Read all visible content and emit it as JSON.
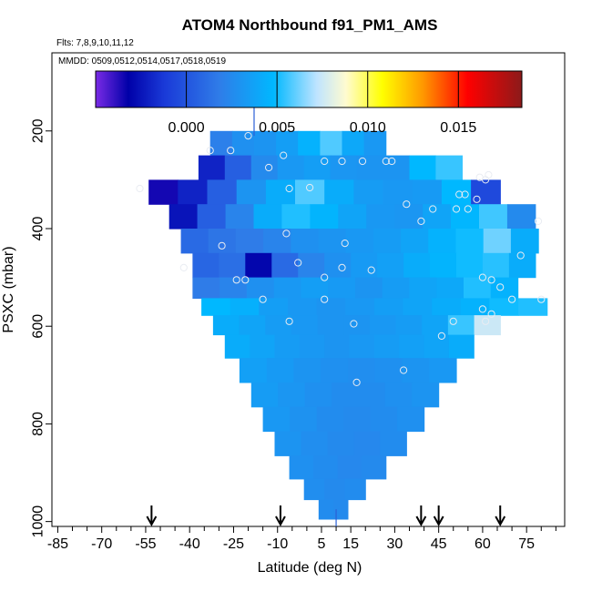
{
  "chart_data": {
    "type": "heatmap",
    "title": "ATOM4 Northbound f91_PM1_AMS",
    "subtitle_flights": "Flts: 7,8,9,10,11,12",
    "subtitle_dates": "MMDD: 0509,0512,0514,0517,0518,0519",
    "xlabel": "Latitude (deg N)",
    "ylabel": "PSXC (mbar)",
    "xlim": [
      -87,
      88
    ],
    "ylim": [
      1010,
      40
    ],
    "x_ticks": [
      -85,
      -70,
      -55,
      -40,
      -25,
      -10,
      5,
      15,
      30,
      45,
      60,
      75
    ],
    "x_tick_labels": [
      "-85",
      "-70",
      "-55",
      "-40",
      "-25",
      "-10",
      "5",
      "15",
      "30",
      "45",
      "60",
      "75"
    ],
    "y_ticks": [
      200,
      400,
      600,
      800,
      1000
    ],
    "y_tick_labels": [
      "200",
      "400",
      "600",
      "800",
      "1000"
    ],
    "colorbar": {
      "range": [
        -0.005,
        0.0185
      ],
      "ticks": [
        0.0,
        0.005,
        0.01,
        0.015
      ],
      "tick_labels": [
        "0.000",
        "0.005",
        "0.010",
        "0.015"
      ],
      "stops": [
        {
          "v": -0.005,
          "color": "#7a2be6"
        },
        {
          "v": -0.0032,
          "color": "#0000a8"
        },
        {
          "v": -0.0012,
          "color": "#1a3ad8"
        },
        {
          "v": 0.0018,
          "color": "#2f7ce8"
        },
        {
          "v": 0.0048,
          "color": "#00b8ff"
        },
        {
          "v": 0.0072,
          "color": "#bfe4ff"
        },
        {
          "v": 0.0088,
          "color": "#fffbd0"
        },
        {
          "v": 0.0108,
          "color": "#ffff00"
        },
        {
          "v": 0.013,
          "color": "#ff9a00"
        },
        {
          "v": 0.0155,
          "color": "#ff0000"
        },
        {
          "v": 0.0185,
          "color": "#8c1a1a"
        }
      ]
    },
    "rows": [
      {
        "p": 225,
        "lat_min": -33,
        "lat_max": 27,
        "cells": [
          0.002,
          0.0028,
          0.003,
          0.0035,
          0.0045,
          0.0058,
          0.004,
          0.0032
        ]
      },
      {
        "p": 275,
        "lat_min": -37,
        "lat_max": 53,
        "cells": [
          -0.002,
          0.0005,
          0.0025,
          0.0032,
          0.0035,
          0.0031,
          0.003,
          0.003,
          0.0048,
          0.0055
        ]
      },
      {
        "p": 325,
        "lat_min": -54,
        "lat_max": 66,
        "cells": [
          -0.0035,
          -0.002,
          0.0005,
          0.003,
          0.0042,
          0.0058,
          0.0042,
          0.0034,
          0.0032,
          0.0033,
          0.0048,
          -0.0005
        ]
      },
      {
        "p": 375,
        "lat_min": -47,
        "lat_max": 78,
        "cells": [
          -0.0025,
          0.0005,
          0.0022,
          0.0042,
          0.0052,
          0.0046,
          0.0038,
          0.0032,
          0.0031,
          0.0038,
          0.0047,
          0.0056,
          0.0025
        ]
      },
      {
        "p": 425,
        "lat_min": -43,
        "lat_max": 79,
        "cells": [
          0.001,
          0.0015,
          0.0018,
          0.0022,
          0.0028,
          0.003,
          0.0032,
          0.0034,
          0.0038,
          0.0045,
          0.005,
          0.0062,
          0.0042
        ]
      },
      {
        "p": 475,
        "lat_min": -39,
        "lat_max": 78,
        "cells": [
          0.0008,
          0.0012,
          -0.003,
          0.001,
          0.0022,
          0.0028,
          0.0033,
          0.0036,
          0.0042,
          0.0046,
          0.005,
          0.0053,
          0.0042
        ]
      },
      {
        "p": 525,
        "lat_min": -39,
        "lat_max": 72,
        "cells": [
          0.0018,
          0.0022,
          0.0028,
          0.0032,
          0.0035,
          0.0033,
          0.003,
          0.0034,
          0.0038,
          0.004,
          0.0052,
          0.0045
        ]
      },
      {
        "p": 560,
        "lat_min": -36,
        "lat_max": 82,
        "cells": [
          0.0048,
          0.0044,
          0.0035,
          0.0032,
          0.003,
          0.0032,
          0.0035,
          0.0038,
          0.0042,
          0.0045,
          0.005,
          0.0052
        ]
      },
      {
        "p": 595,
        "lat_min": -32,
        "lat_max": 66,
        "cells": [
          0.0042,
          0.0038,
          0.0034,
          0.0032,
          0.003,
          0.003,
          0.0032,
          0.0034,
          0.0038,
          0.0055,
          0.0075
        ]
      },
      {
        "p": 640,
        "lat_min": -28,
        "lat_max": 57,
        "cells": [
          0.0042,
          0.0038,
          0.0034,
          0.0032,
          0.003,
          0.0032,
          0.0034,
          0.0036,
          0.0038,
          0.0042
        ]
      },
      {
        "p": 690,
        "lat_min": -23,
        "lat_max": 51,
        "cells": [
          0.0036,
          0.0033,
          0.003,
          0.0028,
          0.0027,
          0.0028,
          0.003,
          0.0032
        ]
      },
      {
        "p": 740,
        "lat_min": -19,
        "lat_max": 45,
        "cells": [
          0.0034,
          0.0031,
          0.0028,
          0.0026,
          0.0026,
          0.0028,
          0.003
        ]
      },
      {
        "p": 790,
        "lat_min": -15,
        "lat_max": 40,
        "cells": [
          0.0032,
          0.0029,
          0.0026,
          0.0025,
          0.0026,
          0.0028
        ]
      },
      {
        "p": 840,
        "lat_min": -11,
        "lat_max": 34,
        "cells": [
          0.003,
          0.0027,
          0.0025,
          0.0024,
          0.0026
        ]
      },
      {
        "p": 890,
        "lat_min": -6,
        "lat_max": 27,
        "cells": [
          0.0028,
          0.0026,
          0.0024,
          0.0025
        ]
      },
      {
        "p": 935,
        "lat_min": -1,
        "lat_max": 20,
        "cells": [
          0.0027,
          0.0025,
          0.0026
        ]
      },
      {
        "p": 975,
        "lat_min": 4,
        "lat_max": 14,
        "cells": [
          0.0026,
          0.0025
        ]
      }
    ],
    "sample_points": [
      [
        -20,
        210
      ],
      [
        -33,
        240
      ],
      [
        -26,
        240
      ],
      [
        -13,
        275
      ],
      [
        -8,
        250
      ],
      [
        -6,
        318
      ],
      [
        1,
        316
      ],
      [
        6,
        262
      ],
      [
        12,
        262
      ],
      [
        19,
        262
      ],
      [
        27,
        262
      ],
      [
        29,
        262
      ],
      [
        -57,
        318
      ],
      [
        34,
        350
      ],
      [
        39,
        385
      ],
      [
        43,
        360
      ],
      [
        52,
        330
      ],
      [
        54,
        330
      ],
      [
        51,
        360
      ],
      [
        55,
        360
      ],
      [
        58,
        340
      ],
      [
        59,
        295
      ],
      [
        62,
        290
      ],
      [
        61,
        300
      ],
      [
        -29,
        435
      ],
      [
        -7,
        410
      ],
      [
        13,
        430
      ],
      [
        -42,
        480
      ],
      [
        -24,
        505
      ],
      [
        -21,
        505
      ],
      [
        -3,
        470
      ],
      [
        6,
        500
      ],
      [
        12,
        480
      ],
      [
        22,
        485
      ],
      [
        60,
        500
      ],
      [
        66,
        520
      ],
      [
        73,
        455
      ],
      [
        79,
        385
      ],
      [
        80,
        545
      ],
      [
        70,
        545
      ],
      [
        60,
        565
      ],
      [
        63,
        575
      ],
      [
        61,
        590
      ],
      [
        50,
        590
      ],
      [
        46,
        620
      ],
      [
        -15,
        545
      ],
      [
        -6,
        590
      ],
      [
        6,
        545
      ],
      [
        16,
        595
      ],
      [
        17,
        715
      ],
      [
        33,
        690
      ],
      [
        63,
        505
      ]
    ],
    "flight_markers": [
      -53,
      -9,
      39,
      45,
      66
    ],
    "pressure_drops": [
      {
        "lat": -18,
        "p_from": 150,
        "p_to": 210
      },
      {
        "lat": 10,
        "p_from": 975,
        "p_to": 1010
      }
    ]
  }
}
